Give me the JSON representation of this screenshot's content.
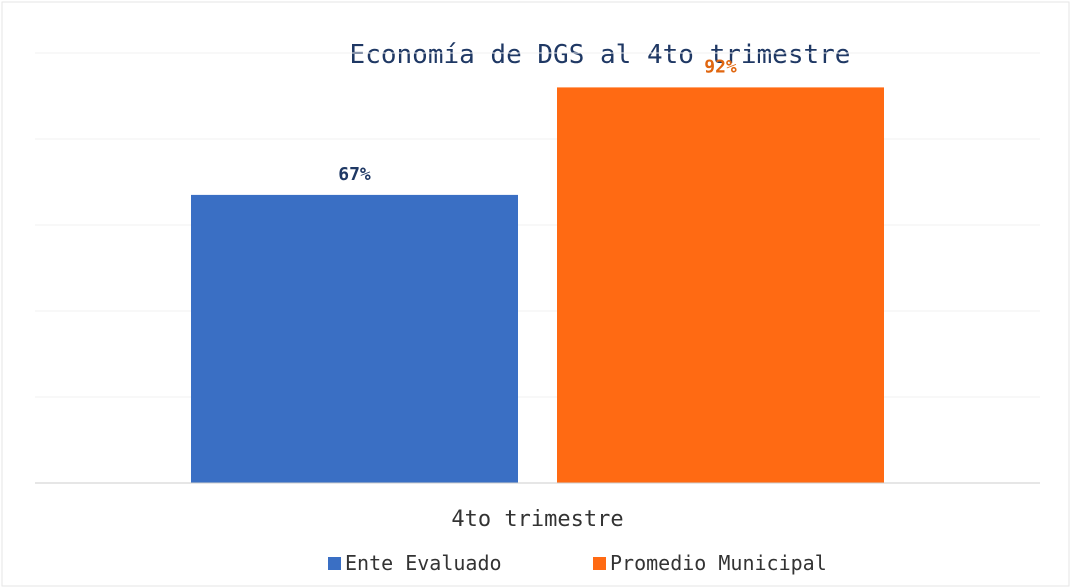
{
  "chart_data": {
    "type": "bar",
    "title": "Economía de DGS al 4to trimestre",
    "categories": [
      "4to trimestre"
    ],
    "series": [
      {
        "name": "Ente Evaluado",
        "values": [
          67
        ],
        "label": "67%",
        "color": "#3a6fc4"
      },
      {
        "name": "Promedio Municipal",
        "values": [
          92
        ],
        "label": "92%",
        "color": "#ff6a13"
      }
    ],
    "label_colors": {
      "Ente Evaluado": "#1f3864",
      "Promedio Municipal": "#e0660f"
    },
    "ylim": [
      0,
      100
    ],
    "value_suffix": "%",
    "grid": true,
    "legend_position": "bottom"
  }
}
